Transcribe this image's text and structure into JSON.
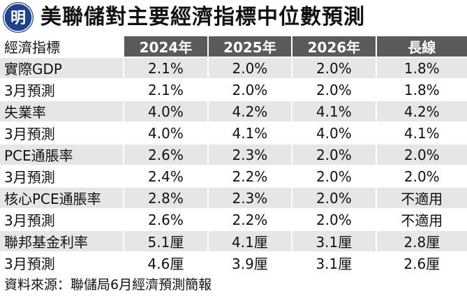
{
  "header": {
    "logo_char": "明",
    "title": "美聯儲對主要經濟指標中位數預測"
  },
  "table": {
    "corner_label": "經濟指標",
    "columns": [
      "2024年",
      "2025年",
      "2026年",
      "長線"
    ],
    "rows": [
      {
        "label": "實際GDP",
        "values": [
          "2.1%",
          "2.0%",
          "2.0%",
          "1.8%"
        ]
      },
      {
        "label": "3月預測",
        "values": [
          "2.1%",
          "2.0%",
          "2.0%",
          "1.8%"
        ]
      },
      {
        "label": "失業率",
        "values": [
          "4.0%",
          "4.2%",
          "4.1%",
          "4.2%"
        ]
      },
      {
        "label": "3月預測",
        "values": [
          "4.0%",
          "4.1%",
          "4.0%",
          "4.1%"
        ]
      },
      {
        "label": "PCE通脹率",
        "values": [
          "2.6%",
          "2.3%",
          "2.0%",
          "2.0%"
        ]
      },
      {
        "label": "3月預測",
        "values": [
          "2.4%",
          "2.2%",
          "2.0%",
          "2.0%"
        ]
      },
      {
        "label": "核心PCE通脹率",
        "values": [
          "2.8%",
          "2.3%",
          "2.0%",
          "不適用"
        ]
      },
      {
        "label": "3月預測",
        "values": [
          "2.6%",
          "2.2%",
          "2.0%",
          "不適用"
        ]
      },
      {
        "label": "聯邦基金利率",
        "values": [
          "5.1厘",
          "4.1厘",
          "3.1厘",
          "2.8厘"
        ]
      },
      {
        "label": "3月預測",
        "values": [
          "4.6厘",
          "3.9厘",
          "3.1厘",
          "2.6厘"
        ]
      }
    ]
  },
  "footer": {
    "source": "資料來源：聯儲局6月經濟預測簡報"
  },
  "colors": {
    "logo_bg": "#1f3f8f",
    "header_bg": "#5a5a5a",
    "row_tint": "#e6e6e6"
  }
}
